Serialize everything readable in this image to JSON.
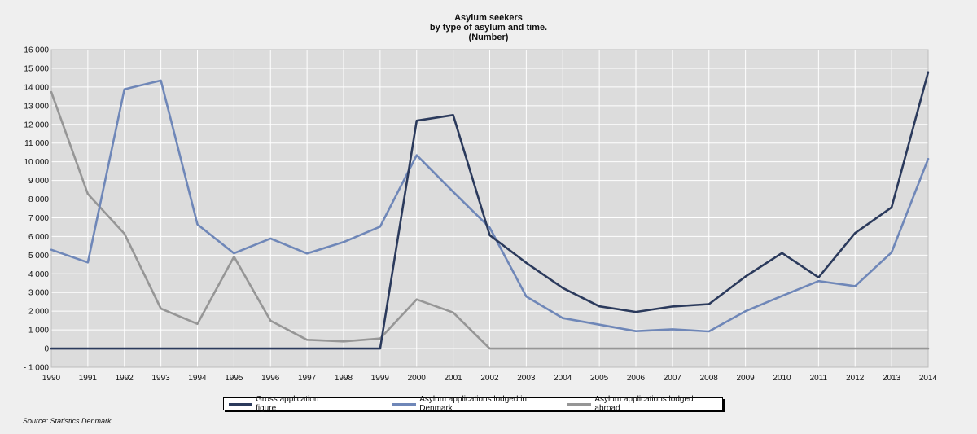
{
  "chart_data": {
    "type": "line",
    "title": "Asylum seekers",
    "subtitle": "by type of asylum and time.",
    "unit_label": "(Number)",
    "categories": [
      "1990",
      "1991",
      "1992",
      "1993",
      "1994",
      "1995",
      "1996",
      "1997",
      "1998",
      "1999",
      "2000",
      "2001",
      "2002",
      "2003",
      "2004",
      "2005",
      "2006",
      "2007",
      "2008",
      "2009",
      "2010",
      "2011",
      "2012",
      "2013",
      "2014"
    ],
    "ylim": [
      -1000,
      16000
    ],
    "yticks": [
      {
        "value": 16000,
        "label": "16 000"
      },
      {
        "value": 15000,
        "label": "15 000"
      },
      {
        "value": 14000,
        "label": "14 000"
      },
      {
        "value": 13000,
        "label": "13 000"
      },
      {
        "value": 12000,
        "label": "12 000"
      },
      {
        "value": 11000,
        "label": "11 000"
      },
      {
        "value": 10000,
        "label": "10 000"
      },
      {
        "value": 9000,
        "label": "9 000"
      },
      {
        "value": 8000,
        "label": "8 000"
      },
      {
        "value": 7000,
        "label": "7 000"
      },
      {
        "value": 6000,
        "label": "6 000"
      },
      {
        "value": 5000,
        "label": "5 000"
      },
      {
        "value": 4000,
        "label": "4 000"
      },
      {
        "value": 3000,
        "label": "3 000"
      },
      {
        "value": 2000,
        "label": "2 000"
      },
      {
        "value": 1000,
        "label": "1 000"
      },
      {
        "value": 0,
        "label": "0"
      },
      {
        "value": -1000,
        "label": "- 1 000"
      }
    ],
    "grid": true,
    "series": [
      {
        "name": "Gross application figure",
        "color": "#2b3a5c",
        "values": [
          0,
          0,
          0,
          0,
          0,
          0,
          0,
          0,
          0,
          0,
          12200,
          12500,
          6070,
          4590,
          3240,
          2260,
          1960,
          2250,
          2380,
          3855,
          5115,
          3806,
          6184,
          7557,
          14792
        ]
      },
      {
        "name": "Asylum applications lodged in Denmark",
        "color": "#6f87b8",
        "values": [
          5290,
          4610,
          13880,
          14350,
          6650,
          5100,
          5890,
          5090,
          5700,
          6530,
          10350,
          8390,
          6470,
          2790,
          1630,
          1280,
          930,
          1030,
          920,
          2000,
          2820,
          3610,
          3340,
          5150,
          10150
        ]
      },
      {
        "name": "Asylum applications lodged  abroad",
        "color": "#969696",
        "values": [
          13730,
          8270,
          6150,
          2140,
          1320,
          4920,
          1490,
          470,
          380,
          540,
          2630,
          1930,
          0,
          0,
          0,
          0,
          0,
          0,
          0,
          0,
          0,
          0,
          0,
          0,
          0
        ]
      }
    ],
    "legend_position": "bottom"
  },
  "source_text": "Source: Statistics Denmark"
}
